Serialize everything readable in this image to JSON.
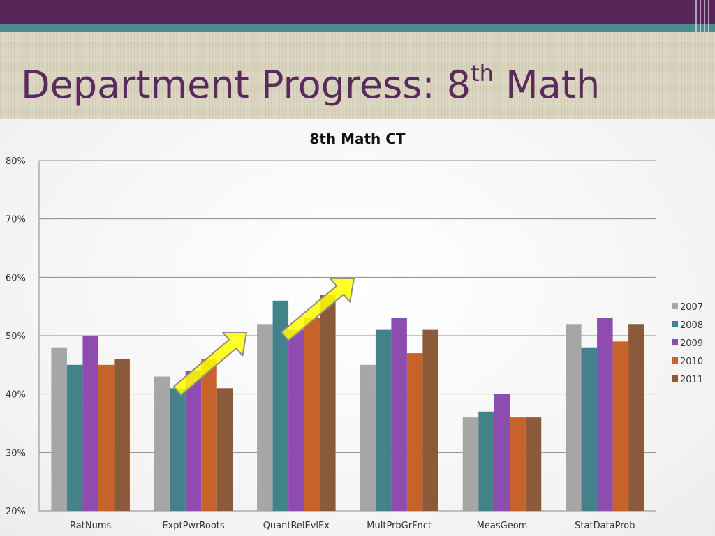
{
  "slide": {
    "title_main": "Department Progress: 8",
    "title_sup": "th",
    "title_end": " Math"
  },
  "colors": {
    "header_band": "#58275a",
    "teal_band": "#4c8c91",
    "title_text": "#5b2a5d",
    "arrow_fill": "#ffff00",
    "arrow_stroke": "#8c8c8c"
  },
  "decorations": [
    "up-right-arrow",
    "up-right-arrow"
  ],
  "chart_data": {
    "type": "bar",
    "title": "8th Math CT",
    "xlabel": "",
    "ylabel": "",
    "ylim": [
      0.2,
      0.8
    ],
    "yticks": [
      0.2,
      0.3,
      0.4,
      0.5,
      0.6,
      0.7,
      0.8
    ],
    "ytick_labels": [
      "20%",
      "30%",
      "40%",
      "50%",
      "60%",
      "70%",
      "80%"
    ],
    "grid": true,
    "legend_position": "right",
    "categories": [
      "RatNums",
      "ExptPwrRoots",
      "QuantRelEvlEx",
      "MultPrbGrFnct",
      "MeasGeom",
      "StatDataProb"
    ],
    "series": [
      {
        "name": "2007",
        "color": "#a6a6a6",
        "values": [
          0.48,
          0.43,
          0.52,
          0.45,
          0.36,
          0.52
        ]
      },
      {
        "name": "2008",
        "color": "#43828a",
        "values": [
          0.45,
          0.41,
          0.56,
          0.51,
          0.37,
          0.48
        ]
      },
      {
        "name": "2009",
        "color": "#8e4bb0",
        "values": [
          0.5,
          0.44,
          0.51,
          0.53,
          0.4,
          0.53
        ]
      },
      {
        "name": "2010",
        "color": "#c8622b",
        "values": [
          0.45,
          0.46,
          0.53,
          0.47,
          0.36,
          0.49
        ]
      },
      {
        "name": "2011",
        "color": "#8b5a3a",
        "values": [
          0.46,
          0.41,
          0.57,
          0.51,
          0.36,
          0.52
        ]
      }
    ]
  }
}
